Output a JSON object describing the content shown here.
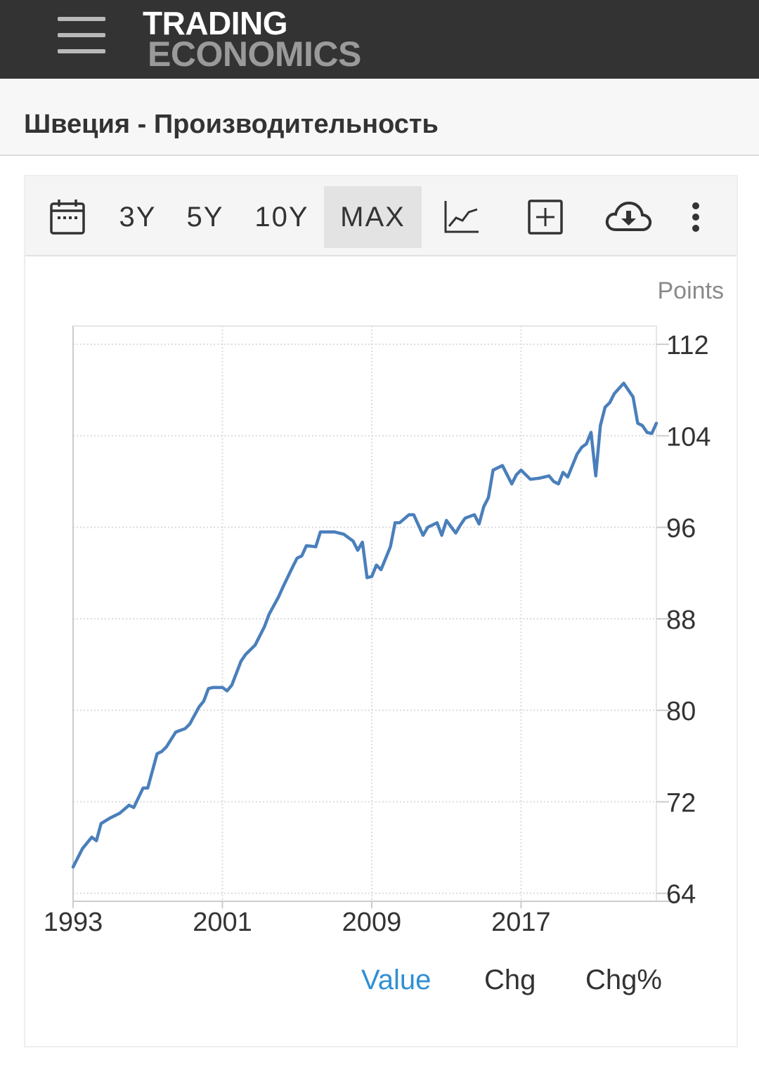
{
  "header": {
    "logo_line1": "TRADING",
    "logo_line2": "ECONOMICS",
    "menu_icon": "hamburger-menu-icon"
  },
  "page": {
    "title": "Швеция - Производительность"
  },
  "toolbar": {
    "calendar_icon": "calendar-icon",
    "ranges": [
      "3Y",
      "5Y",
      "10Y",
      "MAX"
    ],
    "active_range": "MAX",
    "chart_type_icon": "line-chart-icon",
    "compare_icon": "plus-box-icon",
    "download_icon": "cloud-download-icon",
    "more_icon": "more-vertical-icon"
  },
  "tabs": {
    "items": [
      "Value",
      "Chg",
      "Chg%"
    ],
    "active": "Value"
  },
  "colors": {
    "line": "#4a7fbb",
    "active_tab": "#2f8fd6",
    "header_bg": "#333333"
  },
  "chart_data": {
    "type": "line",
    "ylabel": "Points",
    "xlabel": "",
    "x_ticks": [
      "1993",
      "2001",
      "2009",
      "2017"
    ],
    "y_ticks": [
      64,
      72,
      80,
      88,
      96,
      104,
      112
    ],
    "ylim": [
      63.3,
      113.3
    ],
    "xlim": [
      1993.0,
      2024.25
    ],
    "grid": true,
    "y_axis_side": "right",
    "series": [
      {
        "name": "",
        "x": [
          1993.0,
          1993.5,
          1994.0,
          1994.25,
          1994.5,
          1995.0,
          1995.5,
          1996.0,
          1996.25,
          1996.75,
          1997.0,
          1997.5,
          1997.75,
          1998.0,
          1998.5,
          1999.0,
          1999.25,
          1999.75,
          2000.0,
          2000.25,
          2000.5,
          2001.0,
          2001.25,
          2001.5,
          2002.0,
          2002.25,
          2002.75,
          2003.25,
          2003.5,
          2004.0,
          2004.25,
          2004.75,
          2005.0,
          2005.25,
          2005.5,
          2006.0,
          2006.25,
          2006.5,
          2007.0,
          2007.5,
          2008.0,
          2008.25,
          2008.5,
          2008.75,
          2009.0,
          2009.25,
          2009.5,
          2010.0,
          2010.25,
          2010.5,
          2011.0,
          2011.25,
          2011.75,
          2012.0,
          2012.5,
          2012.75,
          2013.0,
          2013.5,
          2013.75,
          2014.0,
          2014.5,
          2014.75,
          2015.0,
          2015.25,
          2015.5,
          2016.0,
          2016.5,
          2016.75,
          2017.0,
          2017.5,
          2018.0,
          2018.5,
          2018.75,
          2019.0,
          2019.25,
          2019.5,
          2020.0,
          2020.25,
          2020.5,
          2020.75,
          2021.0,
          2021.25,
          2021.5,
          2021.75,
          2022.0,
          2022.5,
          2023.0,
          2023.25,
          2023.5,
          2023.75,
          2024.0,
          2024.25
        ],
        "values": [
          66.3,
          67.9,
          68.9,
          68.6,
          70.1,
          70.6,
          71.0,
          71.7,
          71.5,
          73.2,
          73.2,
          76.2,
          76.4,
          76.8,
          78.1,
          78.4,
          78.8,
          80.3,
          80.8,
          81.9,
          82.0,
          82.0,
          81.7,
          82.2,
          84.3,
          84.9,
          85.7,
          87.3,
          88.4,
          89.9,
          90.8,
          92.5,
          93.3,
          93.5,
          94.4,
          94.3,
          95.6,
          95.6,
          95.6,
          95.4,
          94.8,
          94.0,
          94.7,
          91.6,
          91.7,
          92.7,
          92.3,
          94.3,
          96.4,
          96.4,
          97.1,
          97.1,
          95.3,
          96.0,
          96.4,
          95.3,
          96.6,
          95.5,
          96.2,
          96.8,
          97.1,
          96.3,
          97.8,
          98.6,
          101.0,
          101.4,
          99.8,
          100.6,
          101.0,
          100.2,
          100.3,
          100.5,
          100.0,
          99.8,
          100.8,
          100.4,
          102.4,
          103.0,
          103.3,
          104.3,
          100.5,
          104.9,
          106.5,
          106.9,
          107.7,
          108.6,
          107.4,
          105.1,
          104.9,
          104.3,
          104.2,
          105.1
        ]
      }
    ]
  }
}
